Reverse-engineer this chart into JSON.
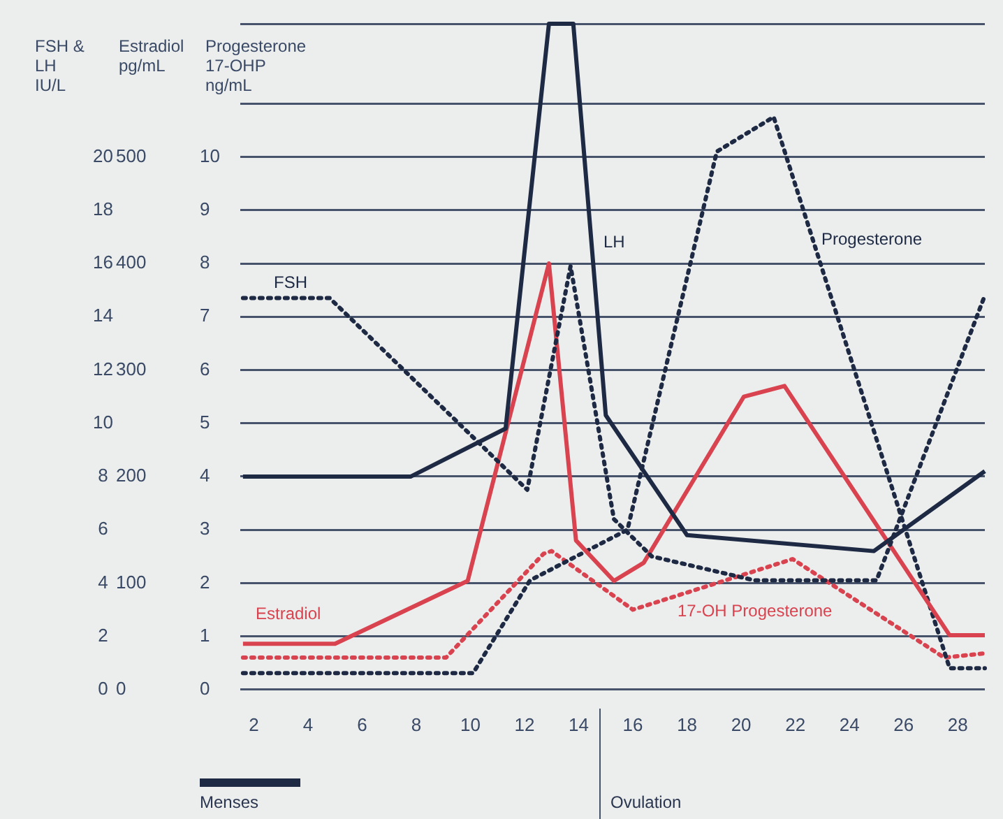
{
  "chart_data": {
    "type": "line",
    "ylabel": "Progesterone\n17-OHP\nng/mL",
    "y2label": "Estradiol\npg/mL",
    "y3label": "FSH &\nLH\nIU/L",
    "xlim": [
      1.5,
      29
    ],
    "xticks": [
      2,
      4,
      6,
      8,
      10,
      12,
      14,
      16,
      18,
      20,
      22,
      24,
      26,
      28
    ],
    "ylim": [
      0,
      12.5
    ],
    "yticks": [
      0,
      1,
      2,
      3,
      4,
      5,
      6,
      7,
      8,
      9,
      10,
      {
        "value": 11,
        "label": null
      },
      {
        "value": 12.5,
        "label": null
      }
    ],
    "y2lim": [
      0,
      625
    ],
    "y2ticks": [
      0,
      100,
      200,
      300,
      400,
      500
    ],
    "y3lim": [
      0,
      25
    ],
    "y3ticks": [
      0,
      2,
      4,
      6,
      8,
      10,
      12,
      14,
      16,
      18,
      20
    ],
    "grid": "y",
    "legend": false,
    "marker": "none",
    "series": [
      {
        "name": "FSH",
        "color": "#1e2a44",
        "line_style": "dotted",
        "axis": "y3",
        "x": [
          1.6,
          4.8,
          12.1,
          13.7,
          15.3,
          16.7,
          20.5,
          25,
          29
        ],
        "values": [
          14.7,
          14.7,
          7.5,
          15.9,
          6.4,
          5.0,
          4.1,
          4.1,
          14.8
        ]
      },
      {
        "name": "LH",
        "color": "#1e2a44",
        "line_style": "solid",
        "axis": "y3",
        "x": [
          1.6,
          7.8,
          11.3,
          12.9,
          13.8,
          15,
          18,
          24.9,
          29
        ],
        "values": [
          8,
          8,
          9.8,
          25,
          25,
          10.3,
          5.8,
          5.2,
          8.2
        ]
      },
      {
        "name": "Estradiol",
        "color": "#d9434f",
        "line_style": "solid",
        "axis": "y2",
        "x": [
          1.6,
          5,
          9.9,
          12.9,
          13.9,
          15.3,
          16.4,
          20.1,
          21.6,
          27.7,
          29
        ],
        "values": [
          43,
          43,
          102,
          400,
          140,
          102,
          119,
          275,
          285,
          51,
          51
        ]
      },
      {
        "name": "Progesterone",
        "color": "#1e2a44",
        "line_style": "dotted",
        "x": [
          1.6,
          10.1,
          12.2,
          15.8,
          19.1,
          21.2,
          27.7,
          29
        ],
        "values": [
          0.31,
          0.31,
          2.05,
          3.0,
          10.1,
          10.75,
          0.4,
          0.4
        ]
      },
      {
        "name": "17-OH Progesterone",
        "color": "#d9434f",
        "line_style": "dotted",
        "x": [
          1.6,
          9.1,
          12.7,
          13,
          16,
          21.9,
          27.5,
          29
        ],
        "values": [
          0.6,
          0.6,
          2.55,
          2.6,
          1.5,
          2.45,
          0.6,
          0.68
        ]
      }
    ],
    "annotations": [
      "Menses",
      "Ovulation"
    ]
  }
}
